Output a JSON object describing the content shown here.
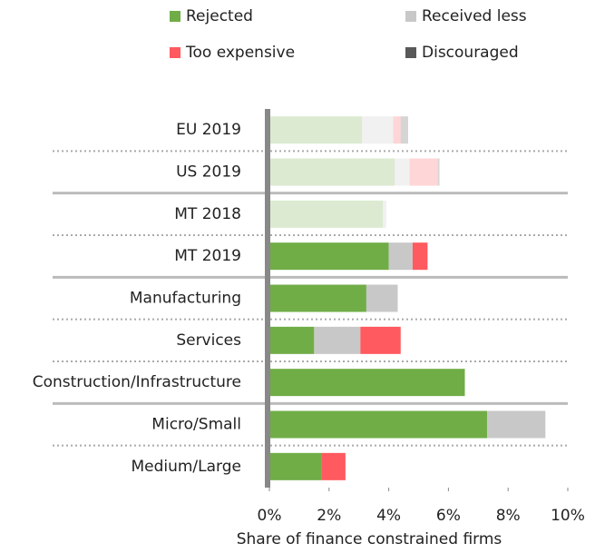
{
  "chart_data": {
    "type": "stacked_barh",
    "x_label": "Share of finance constrained firms",
    "categories": [
      "EU 2019",
      "US 2019",
      "MT 2018",
      "MT 2019",
      "Manufacturing",
      "Services",
      "Construction/Infrastructure",
      "Micro/Small",
      "Medium/Large"
    ],
    "opacity": [
      0.25,
      0.25,
      0.25,
      1,
      1,
      1,
      1,
      1,
      1
    ],
    "groups": [
      2,
      2,
      3,
      2
    ],
    "series": [
      {
        "name": "Rejected",
        "color": "#70ad47",
        "values": [
          3.1,
          4.2,
          3.8,
          4.0,
          3.25,
          1.5,
          6.55,
          7.3,
          1.75
        ]
      },
      {
        "name": "Received less",
        "color": "#c8c8c8",
        "values": [
          1.05,
          0.5,
          0.12,
          0.8,
          1.05,
          1.55,
          0,
          1.95,
          0
        ]
      },
      {
        "name": "Too expensive",
        "color": "#ff5a5f",
        "values": [
          0.25,
          0.95,
          0,
          0.5,
          0,
          1.35,
          0,
          0,
          0.8
        ]
      },
      {
        "name": "Discouraged",
        "color": "#595959",
        "values": [
          0.25,
          0.05,
          0,
          0,
          0,
          0,
          0,
          0,
          0
        ]
      }
    ],
    "xlim": [
      0,
      10
    ],
    "xticks": [
      {
        "value": 0,
        "label": "0%"
      },
      {
        "value": 2,
        "label": "2%"
      },
      {
        "value": 4,
        "label": "4%"
      },
      {
        "value": 6,
        "label": "6%"
      },
      {
        "value": 8,
        "label": "8%"
      },
      {
        "value": 10,
        "label": "10%"
      }
    ]
  }
}
